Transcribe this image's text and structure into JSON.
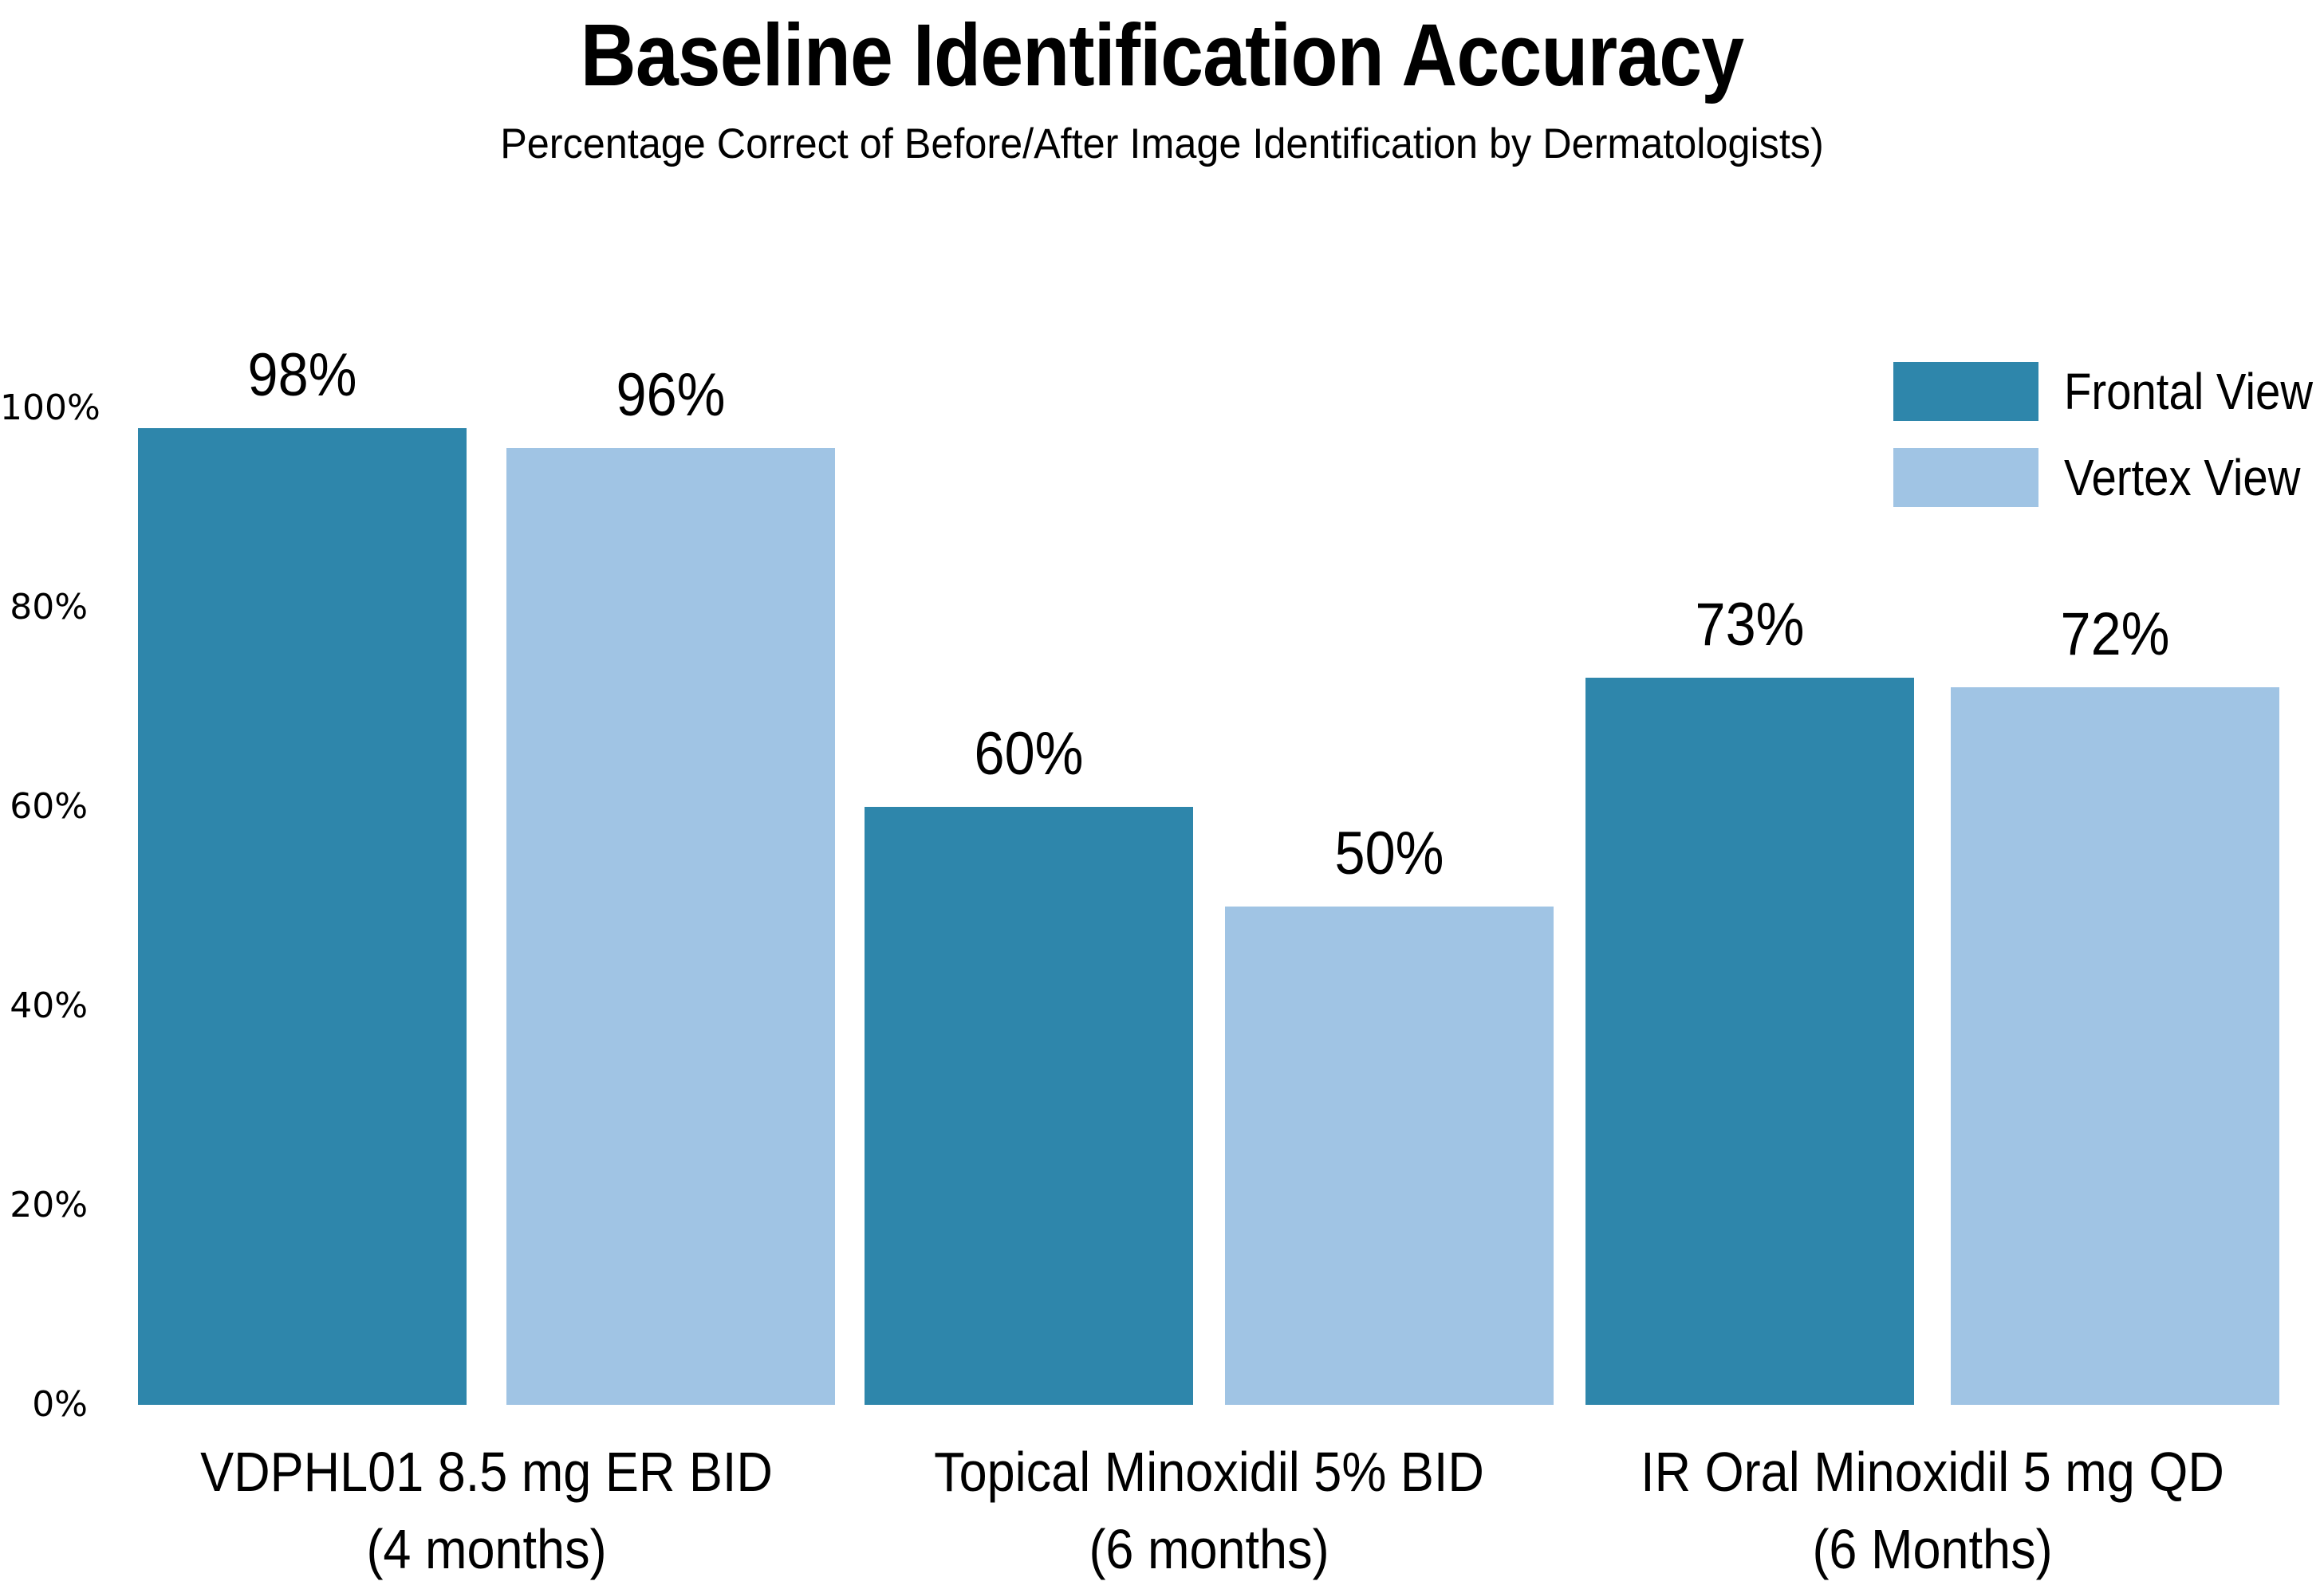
{
  "title": "Baseline Identification Accuracy",
  "subtitle": "Percentage Correct of Before/After Image Identification by Dermatologists)",
  "colors": {
    "frontal": "#2E86AB",
    "vertex": "#A0C4E4",
    "text": "#000000",
    "background": "#FFFFFF"
  },
  "legend": {
    "items": [
      {
        "label": "Frontal View",
        "series_key": "frontal"
      },
      {
        "label": "Vertex View",
        "series_key": "vertex"
      }
    ]
  },
  "chart_data": {
    "type": "bar",
    "categories": [
      {
        "line1": "VDPHL01 8.5 mg ER BID",
        "line2": "(4 months)"
      },
      {
        "line1": "Topical Minoxidil 5% BID",
        "line2": "(6 months)"
      },
      {
        "line1": "IR Oral Minoxidil 5 mg QD",
        "line2": "(6 Months)"
      }
    ],
    "series": [
      {
        "name": "Frontal View",
        "key": "frontal",
        "values": [
          98,
          60,
          73
        ],
        "value_labels": [
          "98%",
          "60%",
          "73%"
        ]
      },
      {
        "name": "Vertex View",
        "key": "vertex",
        "values": [
          96,
          50,
          72
        ],
        "value_labels": [
          "96%",
          "50%",
          "72%"
        ]
      }
    ],
    "xlabel": "",
    "ylabel": "",
    "ylim": [
      0,
      100
    ],
    "y_ticks": [
      {
        "value": 0,
        "label": "0%"
      },
      {
        "value": 20,
        "label": "20%"
      },
      {
        "value": 40,
        "label": "40%"
      },
      {
        "value": 60,
        "label": "60%"
      },
      {
        "value": 80,
        "label": "80%"
      },
      {
        "value": 100,
        "label": "100%"
      }
    ],
    "grid": false,
    "axis_lines": false,
    "legend_position": "upper right",
    "bar_value_labels_shown": true
  }
}
